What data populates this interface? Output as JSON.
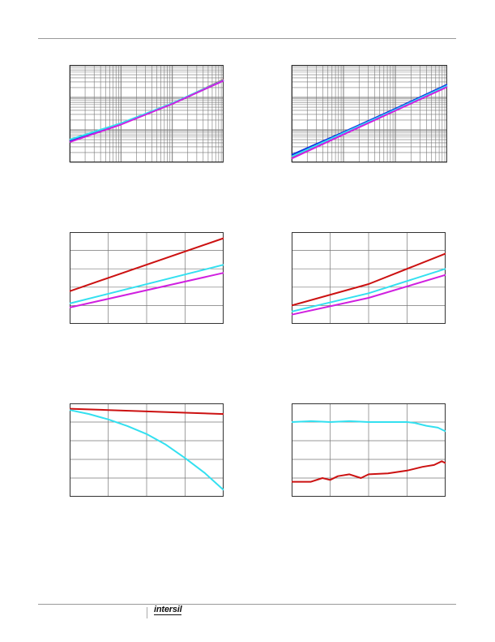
{
  "footer": {
    "brand": "intersil"
  },
  "colors": {
    "red": "#cc1111",
    "cyan": "#33e0f0",
    "magenta": "#d020e0",
    "blue": "#1030e0",
    "frame": "#333333",
    "grid": "#777777"
  },
  "chart_data": [
    {
      "type": "line",
      "title": "",
      "xlabel": "",
      "ylabel": "",
      "xscale": "log",
      "yscale": "log",
      "grid": true,
      "xlim": [
        1,
        1000
      ],
      "ylim": [
        0.1,
        100
      ],
      "series": [
        {
          "color": "red",
          "x": [
            1,
            10,
            100,
            1000
          ],
          "y": [
            0.45,
            1.5,
            6.5,
            35
          ]
        },
        {
          "color": "blue",
          "x": [
            1,
            10,
            100,
            1000
          ],
          "y": [
            0.45,
            1.5,
            6.4,
            33
          ]
        },
        {
          "color": "cyan",
          "x": [
            1,
            10,
            100,
            1000
          ],
          "y": [
            0.5,
            1.6,
            6.6,
            34
          ]
        },
        {
          "color": "magenta",
          "x": [
            1,
            10,
            100,
            1000
          ],
          "y": [
            0.42,
            1.45,
            6.3,
            33
          ]
        }
      ]
    },
    {
      "type": "line",
      "title": "",
      "xlabel": "",
      "ylabel": "",
      "xscale": "log",
      "yscale": "log",
      "grid": true,
      "xlim": [
        1,
        1000
      ],
      "ylim": [
        0.1,
        100
      ],
      "series": [
        {
          "color": "blue",
          "x": [
            1,
            10,
            100,
            1000
          ],
          "y": [
            0.17,
            0.85,
            4.5,
            25
          ]
        },
        {
          "color": "red",
          "x": [
            1,
            10,
            100,
            1000
          ],
          "y": [
            0.14,
            0.75,
            4.0,
            22
          ]
        },
        {
          "color": "cyan",
          "x": [
            1,
            10,
            100,
            1000
          ],
          "y": [
            0.15,
            0.8,
            4.2,
            23
          ]
        },
        {
          "color": "magenta",
          "x": [
            1,
            10,
            100,
            1000
          ],
          "y": [
            0.13,
            0.72,
            3.9,
            21
          ]
        }
      ]
    },
    {
      "type": "line",
      "title": "",
      "xlabel": "",
      "ylabel": "",
      "grid": true,
      "xlim": [
        0,
        4
      ],
      "ylim": [
        0,
        4.5
      ],
      "series": [
        {
          "color": "red",
          "x": [
            0,
            4
          ],
          "y": [
            1.6,
            4.2
          ]
        },
        {
          "color": "cyan",
          "x": [
            0,
            4
          ],
          "y": [
            1.0,
            2.9
          ]
        },
        {
          "color": "magenta",
          "x": [
            0,
            4
          ],
          "y": [
            0.8,
            2.5
          ]
        }
      ]
    },
    {
      "type": "line",
      "title": "",
      "xlabel": "",
      "ylabel": "",
      "grid": true,
      "xlim": [
        0,
        4
      ],
      "ylim": [
        0,
        3
      ],
      "series": [
        {
          "color": "red",
          "x": [
            0,
            2,
            4
          ],
          "y": [
            0.6,
            1.3,
            2.3
          ]
        },
        {
          "color": "cyan",
          "x": [
            0,
            2,
            4
          ],
          "y": [
            0.4,
            1.0,
            1.8
          ]
        },
        {
          "color": "magenta",
          "x": [
            0,
            2,
            4
          ],
          "y": [
            0.3,
            0.85,
            1.6
          ]
        }
      ]
    },
    {
      "type": "line",
      "title": "",
      "xlabel": "",
      "ylabel": "",
      "grid": true,
      "xlim": [
        0,
        4
      ],
      "ylim": [
        0,
        7
      ],
      "series": [
        {
          "color": "red",
          "x": [
            0,
            1,
            2,
            3,
            4
          ],
          "y": [
            6.6,
            6.5,
            6.4,
            6.3,
            6.2
          ]
        },
        {
          "color": "cyan",
          "x": [
            0,
            0.5,
            1,
            1.5,
            2,
            2.5,
            3,
            3.5,
            4
          ],
          "y": [
            6.5,
            6.2,
            5.8,
            5.3,
            4.7,
            3.9,
            2.9,
            1.8,
            0.5
          ]
        }
      ]
    },
    {
      "type": "line",
      "title": "",
      "xlabel": "",
      "ylabel": "",
      "grid": true,
      "xlim": [
        0,
        4
      ],
      "ylim": [
        0,
        5
      ],
      "series": [
        {
          "color": "cyan",
          "x": [
            0,
            0.5,
            1,
            1.5,
            2,
            2.5,
            3,
            3.2,
            3.5,
            3.8,
            4
          ],
          "y": [
            4.0,
            4.05,
            4.0,
            4.05,
            4.0,
            4.0,
            4.0,
            3.95,
            3.8,
            3.7,
            3.5
          ]
        },
        {
          "color": "red",
          "x": [
            0,
            0.5,
            0.8,
            1,
            1.2,
            1.5,
            1.8,
            2,
            2.5,
            3,
            3.4,
            3.7,
            3.9,
            4
          ],
          "y": [
            0.8,
            0.8,
            1.0,
            0.9,
            1.1,
            1.2,
            1.0,
            1.2,
            1.25,
            1.4,
            1.6,
            1.7,
            1.9,
            1.8
          ]
        }
      ]
    }
  ]
}
